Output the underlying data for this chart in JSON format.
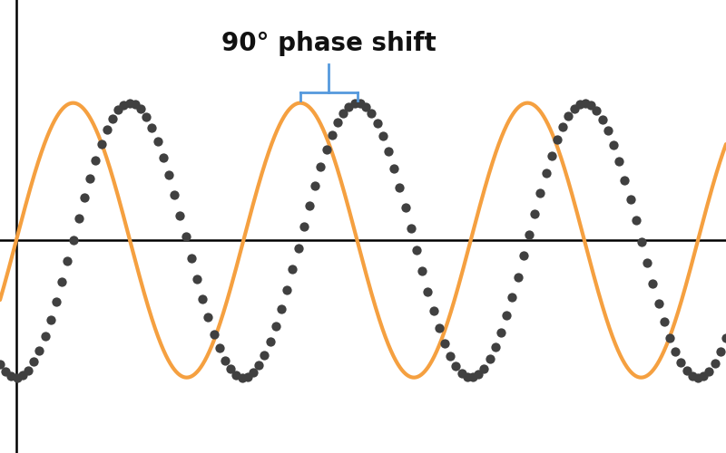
{
  "title": "90° phase shift",
  "title_fontsize": 20,
  "title_fontweight": "bold",
  "background_color": "#ffffff",
  "sine_color": "#F5A040",
  "sine_linewidth": 3.0,
  "cosine_color": "#404040",
  "dot_size": 55,
  "axis_color": "#000000",
  "bracket_color": "#5599DD",
  "freq_factor": 2.5,
  "phase_shift_deg": 90,
  "xlim_start": -0.18,
  "xlim_end": 7.85,
  "ylim_bottom": -1.55,
  "ylim_top": 1.75,
  "num_dots": 130,
  "axis_linewidth": 1.8,
  "bracket_lw": 2.0,
  "text_color": "#111111"
}
